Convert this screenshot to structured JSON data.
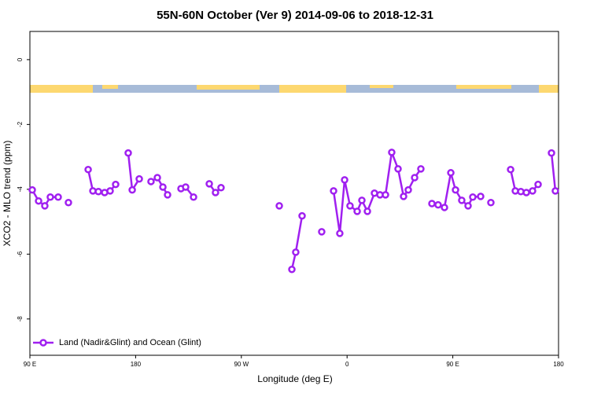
{
  "chart_data": {
    "type": "line",
    "title": "55N-60N October (Ver 9)   2014-09-06 to 2018-12-31",
    "x_label": "Longitude (deg E)",
    "y_label": "XCO2 - MLO trend (ppm)",
    "xlim": [
      -270,
      180
    ],
    "ylim": [
      -9.12,
      0.87
    ],
    "xticks": [
      {
        "value": -270,
        "label": "90 E"
      },
      {
        "value": -180,
        "label": "180"
      },
      {
        "value": -90,
        "label": "90 W"
      },
      0,
      {
        "value": 90,
        "label": "90 E"
      },
      180
    ],
    "yticks": [
      0,
      -2,
      -4,
      -6,
      -8
    ],
    "legend_position": "bottom-left",
    "series": [
      {
        "name": "Land (Nadir&Glint) and Ocean (Glint)",
        "color": "#a020f0",
        "x": [
          -268,
          -262.6,
          -257.3,
          -252.6,
          -245.9,
          null,
          -237.2,
          null,
          -220.4,
          -216.4,
          -211.7,
          -206.4,
          -201.7,
          -197.0,
          null,
          -186.3,
          -182.9,
          -176.9,
          null,
          -166.9,
          -161.5,
          -156.8,
          -152.8,
          null,
          -141.4,
          -137.4,
          -130.7,
          null,
          -117.3,
          -112.0,
          -107.3,
          null,
          -57.7,
          null,
          -47.0,
          -43.7,
          -38.3,
          null,
          -21.6,
          null,
          -11.5,
          -6.2,
          -2.1,
          2.5,
          8.6,
          12.6,
          17.3,
          23.3,
          28.0,
          32.7,
          38.0,
          43.4,
          48.1,
          52.1,
          57.5,
          62.8,
          null,
          72.2,
          77.5,
          82.9,
          88.3,
          92.3,
          97.6,
          103.0,
          107.0,
          113.7,
          null,
          122.4,
          null,
          139.2,
          143.2,
          147.9,
          152.6,
          157.9,
          162.6,
          null,
          174.0,
          177.3
        ],
        "values": [
          -4.02,
          -4.36,
          -4.51,
          -4.24,
          -4.24,
          null,
          -4.41,
          null,
          -3.39,
          -4.05,
          -4.07,
          -4.1,
          -4.05,
          -3.85,
          null,
          -2.88,
          -4.02,
          -3.68,
          null,
          -3.76,
          -3.64,
          -3.93,
          -4.17,
          null,
          -3.98,
          -3.93,
          -4.24,
          null,
          -3.83,
          -4.1,
          -3.95,
          null,
          -4.51,
          null,
          -6.47,
          -5.94,
          -4.82,
          null,
          -5.31,
          null,
          -4.05,
          -5.36,
          -3.71,
          -4.51,
          -4.68,
          -4.34,
          -4.68,
          -4.12,
          -4.17,
          -4.17,
          -2.86,
          -3.37,
          -4.22,
          -4.02,
          -3.64,
          -3.37,
          null,
          -4.44,
          -4.48,
          -4.56,
          -3.49,
          -4.02,
          -4.34,
          -4.51,
          -4.24,
          -4.22,
          null,
          -4.41,
          null,
          -3.39,
          -4.05,
          -4.07,
          -4.1,
          -4.05,
          -3.85,
          null,
          -2.88,
          -4.05
        ]
      }
    ]
  }
}
